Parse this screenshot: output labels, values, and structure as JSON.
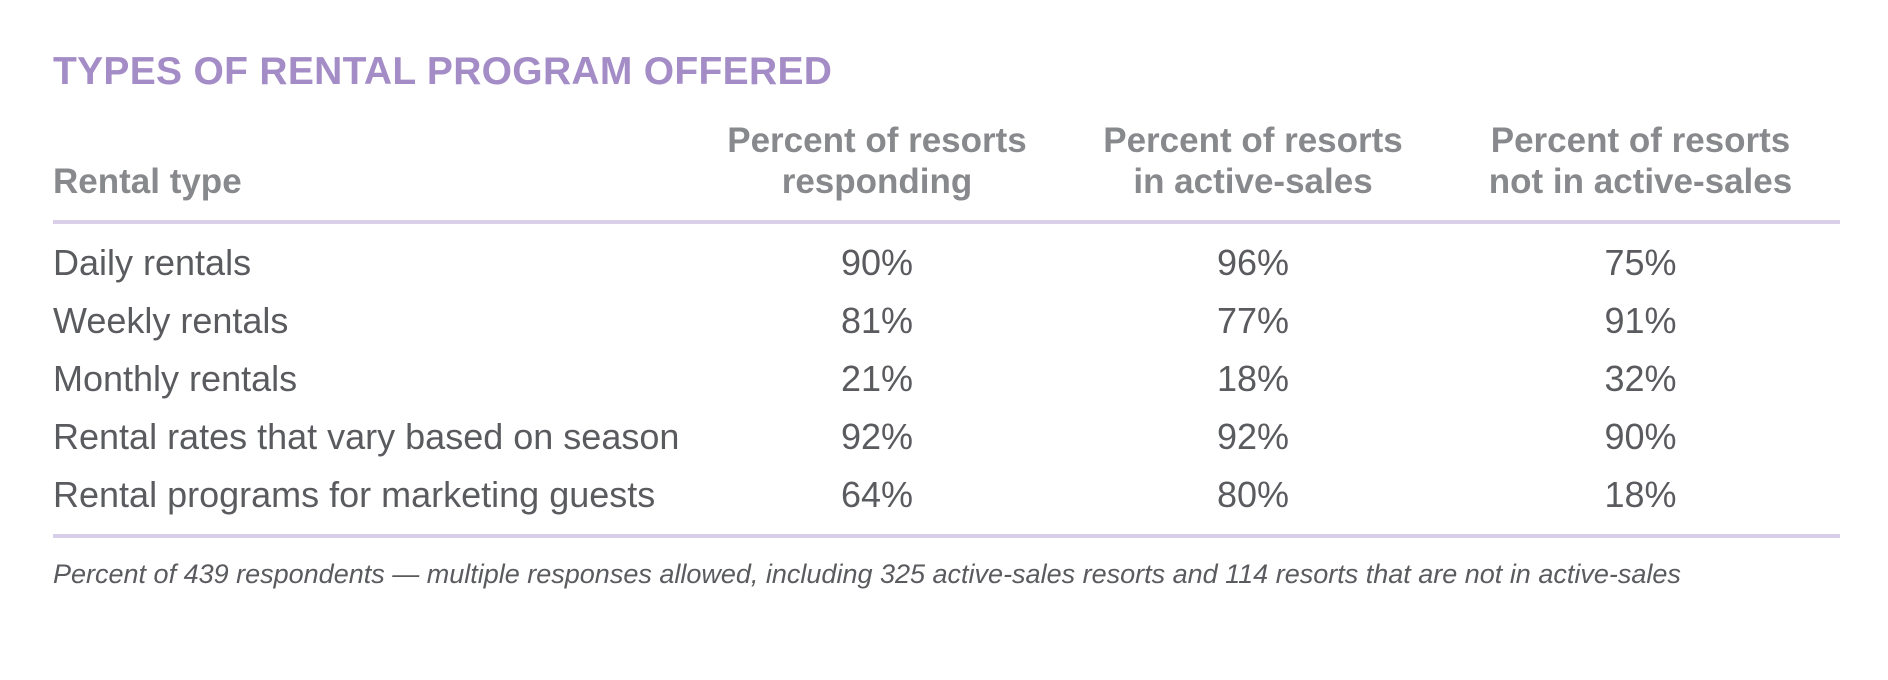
{
  "chart_data": {
    "type": "table",
    "title": "TYPES OF RENTAL PROGRAM OFFERED",
    "columns": [
      "Rental type",
      "Percent of resorts responding",
      "Percent of resorts in active-sales",
      "Percent of resorts not in active-sales"
    ],
    "header_lines": {
      "col0": [
        "Rental type"
      ],
      "col1": [
        "Percent of resorts",
        "responding"
      ],
      "col2": [
        "Percent of resorts",
        "in active-sales"
      ],
      "col3": [
        "Percent of resorts",
        "not in active-sales"
      ]
    },
    "rows": [
      {
        "label": "Daily rentals",
        "responding": "90%",
        "active": "96%",
        "not_active": "75%"
      },
      {
        "label": "Weekly rentals",
        "responding": "81%",
        "active": "77%",
        "not_active": "91%"
      },
      {
        "label": "Monthly rentals",
        "responding": "21%",
        "active": "18%",
        "not_active": "32%"
      },
      {
        "label": "Rental rates that vary based on season",
        "responding": "92%",
        "active": "92%",
        "not_active": "90%"
      },
      {
        "label": "Rental programs for marketing guests",
        "responding": "64%",
        "active": "80%",
        "not_active": "18%"
      }
    ],
    "values": {
      "responding": [
        90,
        81,
        21,
        92,
        64
      ],
      "active": [
        96,
        77,
        18,
        92,
        80
      ],
      "not_active": [
        75,
        91,
        32,
        90,
        18
      ]
    },
    "footnote": "Percent of 439 respondents — multiple responses allowed, including 325 active-sales resorts and 114 resorts that are not in active-sales"
  },
  "colors": {
    "title": "#a48cc6",
    "header_text": "#88898c",
    "body_text": "#5a5b5f",
    "rule": "#d9cfe8"
  }
}
